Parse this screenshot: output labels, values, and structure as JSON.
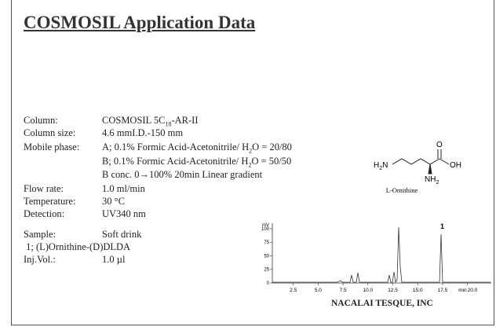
{
  "title": "COSMOSIL Application Data",
  "conditions": [
    {
      "label": "Column:",
      "value": [
        "COSMOSIL 5C",
        "18",
        "-AR-II"
      ]
    },
    {
      "label": "Column size:",
      "value": [
        "4.6 mmI.D.-150 mm"
      ]
    },
    {
      "label": "Mobile phase:",
      "value": [
        "A; 0.1% Formic Acid-Acetonitrile/ H",
        "2",
        "O = 20/80"
      ]
    },
    {
      "value": [
        "B; 0.1% Formic Acid-Acetonitrile/ H",
        "2",
        "O = 50/50"
      ]
    },
    {
      "value": [
        "B conc. 0→100% 20min Linear gradient"
      ]
    },
    {
      "label": "Flow rate:",
      "value": [
        "1.0 ml/min"
      ]
    },
    {
      "label": "Temperature:",
      "value": [
        "30 °C"
      ]
    },
    {
      "label": "Detection:",
      "value": [
        "UV340 nm"
      ]
    }
  ],
  "sample": [
    {
      "label": "Sample:",
      "value": "Soft drink"
    },
    {
      "label": " 1; (L)Ornithine-(D)DLDA"
    },
    {
      "label": "Inj.Vol.:",
      "value": "1.0 µl"
    }
  ],
  "compound": {
    "amine": [
      "H",
      "2",
      "N"
    ],
    "carbonyl": "O",
    "hydroxyl": "OH",
    "alpha_amine": [
      "NH",
      "2"
    ],
    "name": "L-Ornithine"
  },
  "chromatogram": {
    "y_unit": "mV",
    "x_unit": "min",
    "peak_label": "1",
    "xlim": [
      0,
      22
    ],
    "ylim": [
      0,
      110
    ],
    "xticks": [
      2.5,
      {
        "value": 5,
        "label": "5.0"
      },
      7.5,
      {
        "value": 10,
        "label": "10.0"
      },
      12.5,
      {
        "value": 15,
        "label": "15.0"
      },
      17.5,
      {
        "value": 20,
        "label": "20.0"
      }
    ],
    "yticks": [
      0,
      25,
      50,
      75,
      100
    ]
  },
  "footer": "NACALAI TESQUE, INC"
}
